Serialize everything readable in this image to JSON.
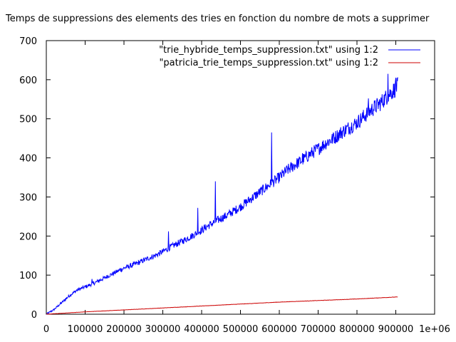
{
  "chart_data": {
    "type": "line",
    "title": "Temps de suppressions des elements des tries en fonction du nombre de mots a supprimer",
    "xlabel": "",
    "ylabel": "",
    "xlim": [
      0,
      1000000
    ],
    "ylim": [
      0,
      700
    ],
    "grid": false,
    "legend_position": "top-right",
    "x_ticks": [
      "0",
      "100000",
      "200000",
      "300000",
      "400000",
      "500000",
      "600000",
      "700000",
      "800000",
      "900000",
      "1e+06"
    ],
    "x_tick_values": [
      0,
      100000,
      200000,
      300000,
      400000,
      500000,
      600000,
      700000,
      800000,
      900000,
      1000000
    ],
    "y_ticks": [
      "0",
      "100",
      "200",
      "300",
      "400",
      "500",
      "600",
      "700"
    ],
    "y_tick_values": [
      0,
      100,
      200,
      300,
      400,
      500,
      600,
      700
    ],
    "series": [
      {
        "name": "\"trie_hybride_temps_suppression.txt\" using 1:2",
        "color": "#0000ff",
        "x": [
          0,
          20000,
          40000,
          60000,
          80000,
          100000,
          120000,
          140000,
          160000,
          180000,
          200000,
          220000,
          240000,
          260000,
          280000,
          300000,
          320000,
          340000,
          360000,
          380000,
          400000,
          420000,
          440000,
          460000,
          480000,
          500000,
          520000,
          540000,
          560000,
          580000,
          600000,
          620000,
          640000,
          660000,
          680000,
          700000,
          720000,
          740000,
          760000,
          780000,
          800000,
          820000,
          840000,
          860000,
          880000,
          900000,
          905000
        ],
        "y": [
          0,
          12,
          30,
          48,
          62,
          70,
          78,
          88,
          98,
          108,
          118,
          125,
          133,
          142,
          150,
          160,
          172,
          182,
          192,
          203,
          215,
          228,
          240,
          250,
          262,
          275,
          290,
          305,
          320,
          335,
          350,
          368,
          382,
          395,
          410,
          423,
          438,
          450,
          465,
          478,
          490,
          508,
          525,
          540,
          560,
          578,
          585
        ],
        "spikes": [
          [
            118000,
            90
          ],
          [
            190000,
            118
          ],
          [
            315000,
            212
          ],
          [
            390000,
            272
          ],
          [
            435000,
            340
          ],
          [
            580000,
            465
          ],
          [
            660000,
            412
          ],
          [
            740000,
            462
          ],
          [
            830000,
            552
          ],
          [
            880000,
            615
          ],
          [
            900000,
            605
          ]
        ]
      },
      {
        "name": "\"patricia_trie_temps_suppression.txt\" using 1:2",
        "color": "#cc0000",
        "x": [
          0,
          100000,
          200000,
          300000,
          400000,
          500000,
          600000,
          700000,
          800000,
          900000,
          905000
        ],
        "y": [
          0,
          6,
          11,
          16,
          21,
          26,
          31,
          35,
          39,
          44,
          44
        ]
      }
    ]
  }
}
